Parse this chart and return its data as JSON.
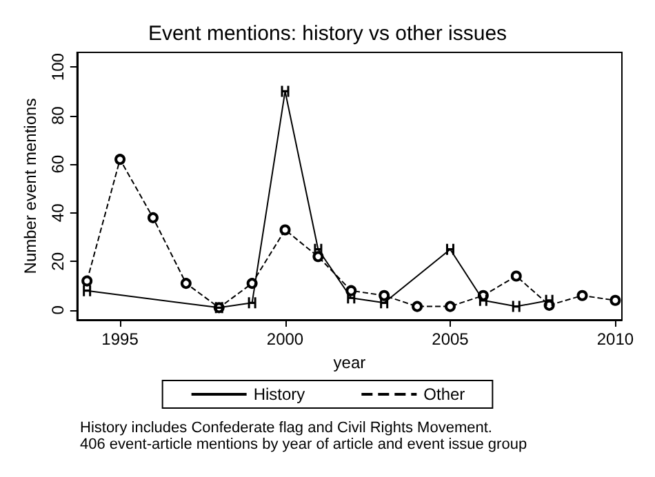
{
  "chart_data": {
    "type": "line",
    "title": "Event mentions: history vs other issues",
    "xlabel": "year",
    "ylabel": "Number event mentions",
    "xlim": [
      1993.7,
      2010.2
    ],
    "xticks": [
      1995,
      2000,
      2005,
      2010
    ],
    "ylim": [
      -4,
      106
    ],
    "yticks": [
      0,
      20,
      40,
      60,
      80,
      100
    ],
    "grid": false,
    "legend": "bottom",
    "series": [
      {
        "name": "History",
        "color": "#000000",
        "line_style": "solid",
        "marker": "cross",
        "x": [
          1994,
          1998,
          1999,
          2000,
          2001,
          2002,
          2003,
          2005,
          2006,
          2007,
          2008
        ],
        "values": [
          8,
          1,
          3,
          90,
          25,
          5,
          3,
          25,
          4,
          1.5,
          4
        ]
      },
      {
        "name": "Other",
        "color": "#000000",
        "line_style": "dashed",
        "marker": "circle",
        "x": [
          1994,
          1995,
          1996,
          1997,
          1998,
          1999,
          2000,
          2001,
          2002,
          2003,
          2004,
          2005,
          2006,
          2007,
          2008,
          2009,
          2010
        ],
        "values": [
          12,
          62,
          38,
          11,
          1,
          11,
          33,
          22,
          8,
          6,
          1.5,
          1.5,
          6,
          14,
          2,
          6,
          4
        ]
      }
    ],
    "annotations": [
      "History includes Confederate flag and Civil Rights Movement.",
      "406 event-article mentions by year of article and event issue group"
    ]
  }
}
